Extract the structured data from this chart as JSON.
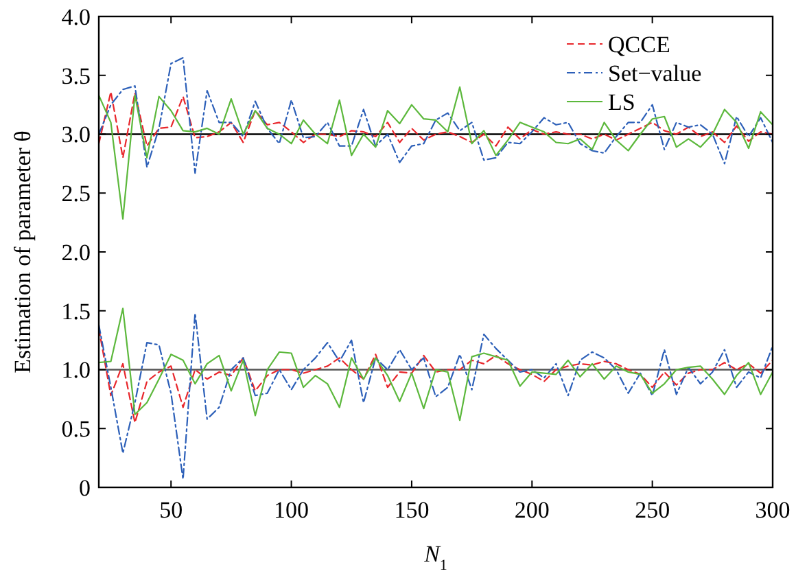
{
  "chart_data": {
    "type": "line",
    "xlabel": "N$_{1}$",
    "ylabel": "Estimation of parameter θ",
    "x": [
      20,
      25,
      30,
      35,
      40,
      45,
      50,
      55,
      60,
      65,
      70,
      75,
      80,
      85,
      90,
      95,
      100,
      105,
      110,
      115,
      120,
      125,
      130,
      135,
      140,
      145,
      150,
      155,
      160,
      165,
      170,
      175,
      180,
      185,
      190,
      195,
      200,
      205,
      210,
      215,
      220,
      225,
      230,
      235,
      240,
      245,
      250,
      255,
      260,
      265,
      270,
      275,
      280,
      285,
      290,
      295,
      300
    ],
    "xlim": [
      20,
      300
    ],
    "xticks": [
      50,
      100,
      150,
      200,
      250,
      300
    ],
    "ylim": [
      0,
      4
    ],
    "yticks": [
      0,
      {
        "value": 0.5,
        "label": "0.5"
      },
      {
        "value": 1,
        "label": "1.0"
      },
      {
        "value": 1.5,
        "label": "1.5"
      },
      {
        "value": 2,
        "label": "2.0"
      },
      {
        "value": 2.5,
        "label": "2.5"
      },
      {
        "value": 3,
        "label": "3.0"
      },
      {
        "value": 3.5,
        "label": "3.5"
      },
      {
        "value": 4,
        "label": "4.0"
      }
    ],
    "legend": "top right",
    "grid": false,
    "ref_lines": [
      {
        "axis": "y",
        "value": 3,
        "color": "#000000"
      },
      {
        "axis": "y",
        "value": 1,
        "color": "#555555"
      }
    ],
    "series": [
      {
        "name": "QCCE",
        "color": "#e8262b",
        "line_style": "dashed",
        "values": [
          2.92,
          3.36,
          2.8,
          3.35,
          2.9,
          3.05,
          3.06,
          3.32,
          2.97,
          2.98,
          3.02,
          3.1,
          2.93,
          3.2,
          3.08,
          3.1,
          3.02,
          2.93,
          3.0,
          3.0,
          2.98,
          3.03,
          3.02,
          2.98,
          3.1,
          2.93,
          3.05,
          2.95,
          3.0,
          3.02,
          2.98,
          2.93,
          3.0,
          2.9,
          3.06,
          2.96,
          3.04,
          3.0,
          3.02,
          3.0,
          3.0,
          2.96,
          3.0,
          2.95,
          3.0,
          3.05,
          3.1,
          3.03,
          3.0,
          3.06,
          2.98,
          3.02,
          2.93,
          3.07,
          2.94,
          3.02,
          3.0
        ]
      },
      {
        "name": "Set−value",
        "color": "#2c5fb8",
        "line_style": "dashdot",
        "values": [
          3.0,
          3.25,
          3.38,
          3.41,
          2.72,
          3.05,
          3.6,
          3.65,
          2.67,
          3.37,
          3.1,
          3.1,
          2.98,
          3.28,
          3.05,
          2.92,
          3.29,
          2.97,
          2.98,
          3.1,
          2.9,
          2.9,
          3.21,
          2.9,
          3.0,
          2.76,
          2.9,
          2.92,
          3.12,
          3.18,
          3.03,
          3.1,
          2.78,
          2.8,
          2.93,
          2.92,
          3.02,
          3.14,
          3.08,
          3.1,
          2.92,
          2.86,
          2.84,
          2.98,
          3.1,
          3.1,
          3.25,
          2.87,
          3.1,
          3.06,
          3.08,
          3.0,
          2.75,
          3.15,
          2.98,
          3.14,
          2.93
        ]
      },
      {
        "name": "LS",
        "color": "#5cb83c",
        "line_style": "solid",
        "values": [
          3.33,
          3.1,
          2.28,
          3.33,
          2.8,
          3.32,
          3.2,
          3.03,
          3.02,
          3.05,
          3.0,
          3.3,
          3.0,
          3.2,
          3.05,
          3.0,
          2.92,
          3.12,
          3.0,
          2.92,
          3.29,
          2.82,
          3.0,
          2.89,
          3.2,
          3.09,
          3.25,
          3.13,
          3.12,
          3.02,
          3.4,
          2.92,
          3.03,
          2.82,
          2.95,
          3.1,
          3.06,
          3.02,
          2.93,
          2.92,
          2.96,
          2.87,
          3.1,
          2.95,
          2.86,
          3.0,
          3.13,
          3.15,
          2.89,
          2.96,
          2.89,
          3.0,
          3.21,
          3.1,
          2.88,
          3.19,
          3.08
        ]
      },
      {
        "color": "#e8262b",
        "line_style": "dashed",
        "values": [
          1.35,
          0.78,
          1.05,
          0.55,
          0.9,
          0.98,
          1.03,
          0.68,
          1.0,
          0.92,
          0.98,
          0.95,
          1.1,
          0.82,
          0.95,
          1.0,
          1.0,
          0.97,
          1.0,
          1.03,
          1.1,
          1.0,
          0.92,
          1.13,
          0.85,
          0.98,
          0.97,
          1.12,
          0.98,
          1.0,
          1.0,
          1.08,
          1.05,
          1.12,
          1.05,
          1.0,
          0.96,
          0.9,
          1.0,
          1.03,
          1.05,
          1.04,
          1.07,
          1.05,
          1.0,
          0.96,
          0.85,
          0.98,
          0.87,
          0.97,
          1.0,
          1.0,
          1.06,
          1.0,
          1.05,
          0.97,
          1.08
        ]
      },
      {
        "color": "#2c5fb8",
        "line_style": "dashdot",
        "values": [
          1.38,
          0.85,
          0.29,
          0.72,
          1.23,
          1.21,
          0.8,
          0.07,
          1.48,
          0.58,
          0.68,
          1.0,
          1.1,
          0.78,
          0.8,
          1.0,
          0.83,
          1.0,
          1.1,
          1.23,
          1.07,
          1.25,
          0.72,
          1.1,
          1.0,
          1.17,
          1.0,
          1.1,
          0.77,
          0.85,
          1.13,
          0.83,
          1.3,
          1.18,
          1.08,
          0.98,
          1.0,
          0.93,
          1.05,
          0.78,
          1.08,
          1.15,
          1.1,
          1.0,
          0.8,
          0.97,
          0.78,
          1.17,
          0.79,
          1.02,
          0.88,
          0.98,
          1.17,
          0.85,
          0.98,
          0.93,
          1.2
        ]
      },
      {
        "color": "#5cb83c",
        "line_style": "solid",
        "values": [
          1.06,
          1.07,
          1.52,
          0.62,
          0.72,
          0.92,
          1.13,
          1.08,
          0.88,
          1.05,
          1.12,
          0.82,
          1.08,
          0.61,
          1.0,
          1.15,
          1.14,
          0.85,
          0.95,
          0.88,
          0.68,
          1.1,
          0.92,
          1.1,
          0.95,
          0.73,
          0.97,
          0.67,
          1.0,
          0.98,
          0.57,
          1.11,
          1.14,
          1.11,
          1.08,
          0.86,
          0.98,
          0.97,
          0.96,
          1.08,
          0.94,
          1.05,
          0.92,
          1.03,
          0.98,
          0.96,
          0.8,
          0.88,
          1.0,
          1.02,
          1.03,
          0.92,
          0.79,
          0.95,
          1.06,
          0.79,
          0.98
        ]
      }
    ]
  }
}
